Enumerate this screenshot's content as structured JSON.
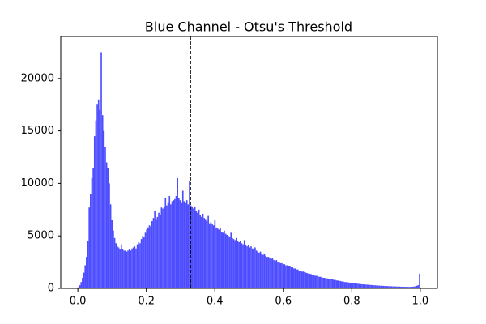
{
  "chart_data": {
    "type": "histogram",
    "title": "Blue Channel - Otsu's Threshold",
    "color": "#4d4dff",
    "bins": [
      0,
      0.0039,
      0.0078,
      0.0117,
      0.0156,
      0.0195,
      0.0234,
      0.0273,
      0.0313,
      0.0352,
      0.0391,
      0.043,
      0.0469,
      0.0508,
      0.0547,
      0.0586,
      0.0625,
      0.0664,
      0.0703,
      0.0742,
      0.0781,
      0.082,
      0.0859,
      0.0898,
      0.0938,
      0.0977,
      0.1016,
      0.1055,
      0.1094,
      0.1133,
      0.1172,
      0.1211,
      0.125,
      0.1289,
      0.1328,
      0.1367,
      0.1406,
      0.1445,
      0.1484,
      0.1523,
      0.1563,
      0.1602,
      0.1641,
      0.168,
      0.1719,
      0.1758,
      0.1797,
      0.1836,
      0.1875,
      0.1914,
      0.1953,
      0.1992,
      0.2031,
      0.207,
      0.2109,
      0.2148,
      0.2188,
      0.2227,
      0.2266,
      0.2305,
      0.2344,
      0.2383,
      0.2422,
      0.2461,
      0.25,
      0.2539,
      0.2578,
      0.2617,
      0.2656,
      0.2695,
      0.2734,
      0.2773,
      0.2813,
      0.2852,
      0.2891,
      0.293,
      0.2969,
      0.3008,
      0.3047,
      0.3086,
      0.3125,
      0.3164,
      0.3203,
      0.3242,
      0.3281,
      0.332,
      0.3359,
      0.3398,
      0.3438,
      0.3477,
      0.3516,
      0.3555,
      0.3594,
      0.3633,
      0.3672,
      0.3711,
      0.375,
      0.3789,
      0.3828,
      0.3867,
      0.3906,
      0.3945,
      0.3984,
      0.4023,
      0.4063,
      0.4102,
      0.4141,
      0.418,
      0.4219,
      0.4258,
      0.4297,
      0.4336,
      0.4375,
      0.4414,
      0.4453,
      0.4492,
      0.4531,
      0.457,
      0.4609,
      0.4648,
      0.4688,
      0.4727,
      0.4766,
      0.4805,
      0.4844,
      0.4883,
      0.4922,
      0.4961,
      0.5,
      0.5039,
      0.5078,
      0.5117,
      0.5156,
      0.5195,
      0.5234,
      0.5273,
      0.5313,
      0.5352,
      0.5391,
      0.543,
      0.5469,
      0.5508,
      0.5547,
      0.5586,
      0.5625,
      0.5664,
      0.5703,
      0.5742,
      0.5781,
      0.582,
      0.5859,
      0.5898,
      0.5938,
      0.5977,
      0.6016,
      0.6055,
      0.6094,
      0.6133,
      0.6172,
      0.6211,
      0.625,
      0.6289,
      0.6328,
      0.6367,
      0.6406,
      0.6445,
      0.6484,
      0.6523,
      0.6563,
      0.6602,
      0.6641,
      0.668,
      0.6719,
      0.6758,
      0.6797,
      0.6836,
      0.6875,
      0.6914,
      0.6953,
      0.6992,
      0.7031,
      0.707,
      0.7109,
      0.7148,
      0.7188,
      0.7227,
      0.7266,
      0.7305,
      0.7344,
      0.7383,
      0.7422,
      0.7461,
      0.75,
      0.7539,
      0.7578,
      0.7617,
      0.7656,
      0.7695,
      0.7734,
      0.7773,
      0.7813,
      0.7852,
      0.7891,
      0.793,
      0.7969,
      0.8008,
      0.8047,
      0.8086,
      0.8125,
      0.8164,
      0.8203,
      0.8242,
      0.8281,
      0.832,
      0.8359,
      0.8398,
      0.8438,
      0.8477,
      0.8516,
      0.8555,
      0.8594,
      0.8633,
      0.8672,
      0.8711,
      0.875,
      0.8789,
      0.8828,
      0.8867,
      0.8906,
      0.8945,
      0.8984,
      0.9023,
      0.9063,
      0.9102,
      0.9141,
      0.918,
      0.9219,
      0.9258,
      0.9297,
      0.9336,
      0.9375,
      0.9414,
      0.9453,
      0.9492,
      0.9531,
      0.957,
      0.9609,
      0.9648,
      0.9688,
      0.9727,
      0.9766,
      0.9805,
      0.9844,
      0.9883,
      0.9922,
      0.9961,
      1
    ],
    "values": [
      100,
      300,
      600,
      1000,
      1500,
      2200,
      3000,
      4500,
      7700,
      9000,
      10500,
      11500,
      14500,
      16000,
      17500,
      18000,
      17000,
      22500,
      16500,
      15000,
      13500,
      12000,
      11500,
      10000,
      8000,
      6500,
      5500,
      4800,
      4300,
      4000,
      3900,
      3700,
      4200,
      3700,
      3600,
      3600,
      3500,
      3600,
      3700,
      3600,
      3800,
      3900,
      4000,
      3800,
      4200,
      4400,
      4300,
      4700,
      5000,
      4900,
      5300,
      5600,
      5800,
      6000,
      5900,
      6400,
      6700,
      7400,
      6600,
      6800,
      7200,
      7000,
      7700,
      7600,
      7800,
      8600,
      7900,
      8200,
      8800,
      8000,
      8300,
      8400,
      8500,
      8800,
      10500,
      8600,
      8400,
      8200,
      9300,
      8300,
      8200,
      8400,
      8000,
      10200,
      7900,
      7800,
      7600,
      7800,
      7400,
      7200,
      7500,
      7000,
      6800,
      7100,
      6700,
      6600,
      6400,
      6900,
      6200,
      6300,
      6100,
      6000,
      6500,
      5800,
      5700,
      5600,
      5800,
      5400,
      5300,
      5500,
      5200,
      5100,
      5000,
      4900,
      5300,
      4800,
      4700,
      4600,
      4800,
      4500,
      4400,
      4500,
      4300,
      4200,
      4600,
      4100,
      4000,
      4100,
      3900,
      4000,
      3800,
      3700,
      3900,
      3600,
      3500,
      3400,
      3500,
      3300,
      3200,
      3300,
      3100,
      3000,
      3000,
      2900,
      2800,
      2900,
      2700,
      2600,
      2700,
      2500,
      2500,
      2400,
      2400,
      2300,
      2300,
      2200,
      2200,
      2100,
      2100,
      2000,
      2000,
      1900,
      1900,
      1800,
      1800,
      1700,
      1700,
      1600,
      1600,
      1550,
      1500,
      1450,
      1400,
      1400,
      1350,
      1300,
      1250,
      1200,
      1200,
      1150,
      1100,
      1100,
      1050,
      1000,
      1000,
      950,
      950,
      900,
      900,
      850,
      850,
      800,
      800,
      750,
      750,
      700,
      700,
      650,
      650,
      600,
      600,
      580,
      560,
      540,
      520,
      500,
      480,
      460,
      450,
      440,
      420,
      400,
      390,
      380,
      370,
      360,
      350,
      340,
      330,
      320,
      310,
      300,
      290,
      280,
      270,
      260,
      250,
      240,
      240,
      230,
      220,
      220,
      210,
      200,
      200,
      190,
      190,
      180,
      180,
      170,
      170,
      160,
      160,
      150,
      150,
      150,
      140,
      140,
      140,
      150,
      160,
      180,
      200,
      250,
      300,
      1400
    ],
    "threshold": 0.329,
    "threshold_color": "#000000",
    "xlim": [
      -0.05,
      1.05
    ],
    "xticks": [
      {
        "value": 0,
        "label": "0.0"
      },
      {
        "value": 0.2,
        "label": "0.2"
      },
      {
        "value": 0.4,
        "label": "0.4"
      },
      {
        "value": 0.6,
        "label": "0.6"
      },
      {
        "value": 0.8,
        "label": "0.8"
      },
      {
        "value": 1,
        "label": "1.0"
      }
    ],
    "ylim": [
      0,
      24000
    ],
    "yticks": [
      0,
      5000,
      10000,
      15000,
      20000
    ],
    "grid": false
  }
}
